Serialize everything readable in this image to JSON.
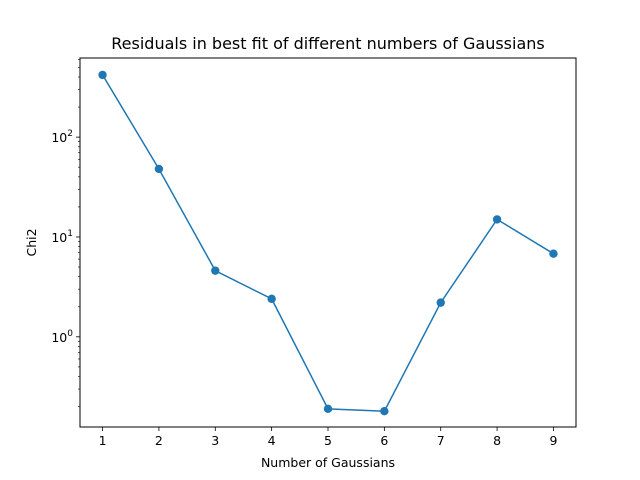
{
  "chart_data": {
    "type": "line",
    "title": "Residuals in best fit of different numbers of Gaussians",
    "xlabel": "Number of Gaussians",
    "ylabel": "Chi2",
    "yscale": "log",
    "x": [
      1,
      2,
      3,
      4,
      5,
      6,
      7,
      8,
      9
    ],
    "xticks": [
      "1",
      "2",
      "3",
      "4",
      "5",
      "6",
      "7",
      "8",
      "9"
    ],
    "xlim": [
      0.6,
      9.4
    ],
    "ylim": [
      0.125,
      620
    ],
    "yticks": [
      {
        "value": 1,
        "base": "10",
        "exp": "0"
      },
      {
        "value": 10,
        "base": "10",
        "exp": "1"
      },
      {
        "value": 100,
        "base": "10",
        "exp": "2"
      }
    ],
    "series": [
      {
        "name": "",
        "color": "#1f77b4",
        "marker": "circle",
        "values": [
          420,
          48,
          4.6,
          2.4,
          0.19,
          0.18,
          2.2,
          15,
          6.8
        ]
      }
    ],
    "grid": false,
    "legend": "none"
  }
}
